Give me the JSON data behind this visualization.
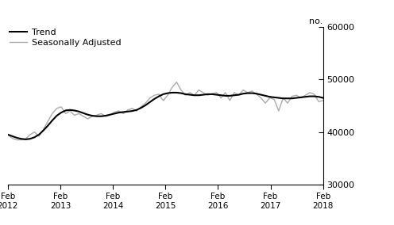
{
  "title": "",
  "ylabel": "no.",
  "ylim": [
    30000,
    60000
  ],
  "yticks": [
    30000,
    40000,
    50000,
    60000
  ],
  "xlabel_years": [
    "Feb\n2012",
    "Feb\n2013",
    "Feb\n2014",
    "Feb\n2015",
    "Feb\n2016",
    "Feb\n2017",
    "Feb\n2018"
  ],
  "legend_entries": [
    "Trend",
    "Seasonally Adjusted"
  ],
  "trend_color": "#000000",
  "seasonal_color": "#aaaaaa",
  "background_color": "#ffffff",
  "trend_data": [
    39500,
    39200,
    38900,
    38700,
    38600,
    38700,
    39000,
    39500,
    40300,
    41200,
    42200,
    43100,
    43700,
    44100,
    44200,
    44100,
    43900,
    43600,
    43300,
    43100,
    43000,
    43000,
    43100,
    43300,
    43500,
    43700,
    43800,
    43900,
    44000,
    44200,
    44600,
    45100,
    45700,
    46300,
    46800,
    47200,
    47400,
    47500,
    47500,
    47400,
    47200,
    47100,
    47000,
    47000,
    47100,
    47200,
    47200,
    47100,
    47000,
    46900,
    46900,
    47000,
    47100,
    47300,
    47400,
    47400,
    47300,
    47100,
    46900,
    46700,
    46600,
    46500,
    46400,
    46400,
    46400,
    46500,
    46600,
    46700,
    46800,
    46800,
    46700,
    46500
  ],
  "seasonal_data": [
    39500,
    38800,
    38500,
    38500,
    38700,
    39500,
    40000,
    39200,
    40500,
    42000,
    43500,
    44500,
    44800,
    43500,
    44000,
    43200,
    43500,
    43000,
    42500,
    43000,
    43200,
    43500,
    43000,
    43200,
    43800,
    44000,
    43500,
    44200,
    44500,
    44000,
    44800,
    45500,
    46500,
    47000,
    47200,
    46000,
    47000,
    48500,
    49500,
    48000,
    47000,
    47500,
    47000,
    48000,
    47500,
    47000,
    47300,
    47500,
    46500,
    47500,
    46000,
    47500,
    47000,
    48000,
    47500,
    47800,
    47200,
    46500,
    45500,
    46500,
    46200,
    44000,
    46500,
    45500,
    46800,
    47000,
    46500,
    47000,
    47500,
    47200,
    45800,
    46000
  ]
}
